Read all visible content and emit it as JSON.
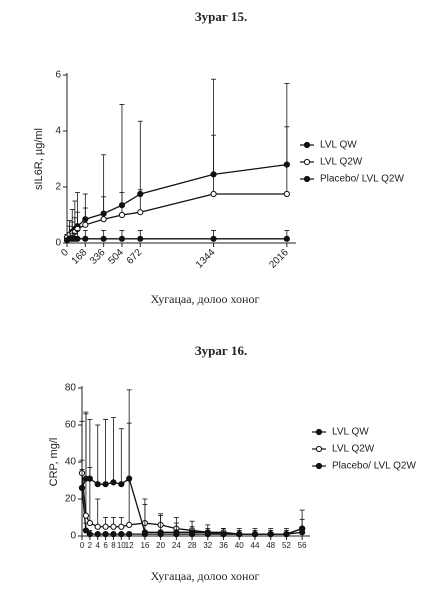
{
  "chart_data": [
    {
      "type": "line",
      "title": "Зураг 15.",
      "ylabel": "sIL6R, µg/ml",
      "xlabel": "Хугацаа, долоо хоног",
      "x": [
        0,
        24,
        48,
        72,
        96,
        168,
        336,
        504,
        672,
        1344,
        2016
      ],
      "xlim": [
        0,
        2100
      ],
      "xticks": [
        0,
        168,
        336,
        504,
        672,
        1344,
        2016
      ],
      "ylim": [
        0,
        6
      ],
      "yticks": [
        0,
        2,
        4,
        6
      ],
      "series": [
        {
          "name": "LVL QW",
          "color": "#111111",
          "marker": "filled",
          "values": [
            0.2,
            0.3,
            0.4,
            0.5,
            0.6,
            0.85,
            1.05,
            1.35,
            1.75,
            2.45,
            2.8
          ],
          "errors": [
            0.1,
            0.5,
            0.8,
            1.0,
            1.2,
            0.9,
            2.1,
            3.6,
            2.6,
            3.4,
            2.9
          ]
        },
        {
          "name": "LVL Q2W",
          "color": "#111111",
          "marker": "open",
          "values": [
            0.2,
            0.3,
            0.35,
            0.4,
            0.5,
            0.65,
            0.85,
            1.0,
            1.1,
            1.75,
            1.75
          ],
          "errors": [
            0.1,
            0.3,
            0.4,
            0.5,
            0.6,
            0.6,
            0.8,
            0.8,
            0.8,
            2.1,
            2.4
          ]
        },
        {
          "name": "Placebo/ LVL Q2W",
          "color": "#111111",
          "marker": "filled",
          "values": [
            0.1,
            0.15,
            0.15,
            0.15,
            0.15,
            0.15,
            0.15,
            0.15,
            0.15,
            0.15,
            0.15
          ],
          "errors": [
            0.05,
            0.1,
            0.2,
            0.2,
            0.3,
            0.3,
            0.3,
            0.3,
            0.3,
            0.3,
            0.3
          ]
        }
      ]
    },
    {
      "type": "line",
      "title": "Зураг 16.",
      "ylabel": "CRP, mg/l",
      "xlabel": "Хугацаа, долоо хоног",
      "x": [
        0,
        1,
        2,
        4,
        6,
        8,
        10,
        12,
        16,
        20,
        24,
        28,
        32,
        36,
        40,
        44,
        48,
        52,
        56
      ],
      "xlim": [
        0,
        58
      ],
      "xticks": [
        0,
        2,
        4,
        6,
        8,
        10,
        12,
        16,
        20,
        24,
        28,
        32,
        36,
        40,
        44,
        48,
        52,
        56
      ],
      "ylim": [
        0,
        80
      ],
      "yticks": [
        0,
        20,
        40,
        60,
        80
      ],
      "series": [
        {
          "name": "LVL QW",
          "color": "#111111",
          "marker": "filled",
          "values": [
            26,
            3,
            1,
            1,
            1,
            1,
            1,
            1,
            1,
            1,
            1,
            1,
            1,
            1,
            1,
            1,
            1,
            1,
            2
          ],
          "errors": [
            10,
            4,
            2,
            1,
            1,
            1,
            1,
            1,
            1,
            1,
            1,
            1,
            1,
            1,
            1,
            1,
            1,
            1,
            2
          ]
        },
        {
          "name": "LVL Q2W",
          "color": "#111111",
          "marker": "open",
          "values": [
            34,
            11,
            7,
            5,
            5,
            5,
            5,
            6,
            7,
            6,
            4,
            3,
            2,
            2,
            1,
            1,
            1,
            1,
            4
          ],
          "errors": [
            28,
            55,
            30,
            15,
            5,
            5,
            5,
            55,
            10,
            5,
            3,
            2,
            2,
            2,
            2,
            2,
            2,
            2,
            5
          ]
        },
        {
          "name": "Placebo/ LVL Q2W",
          "color": "#111111",
          "marker": "filled",
          "values": [
            26,
            31,
            31,
            28,
            28,
            29,
            28,
            31,
            2,
            2,
            2,
            2,
            2,
            1,
            1,
            1,
            1,
            1,
            4
          ],
          "errors": [
            15,
            36,
            32,
            32,
            35,
            35,
            30,
            48,
            18,
            10,
            8,
            6,
            4,
            3,
            3,
            3,
            3,
            3,
            10
          ]
        }
      ]
    }
  ]
}
